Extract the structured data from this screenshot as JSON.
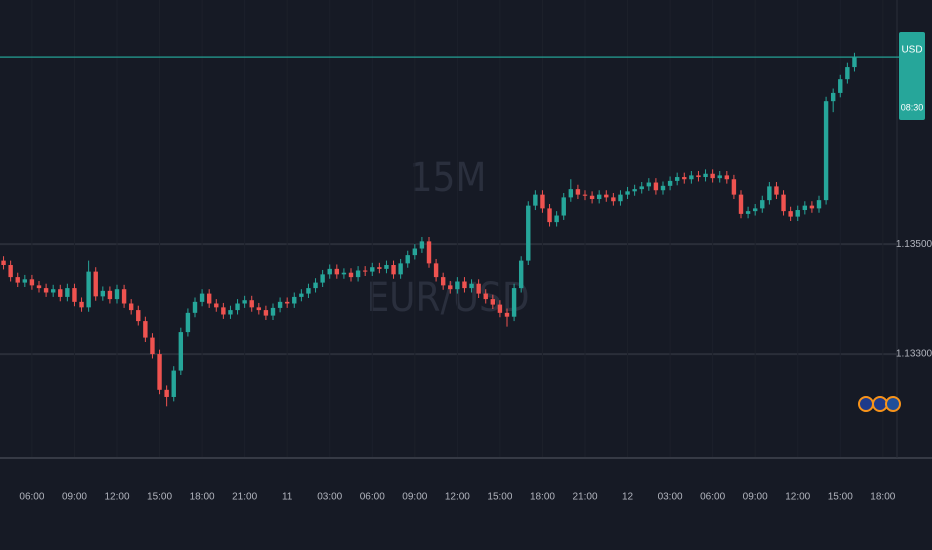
{
  "chart_data": {
    "type": "candlestick",
    "title": "EUR/USD",
    "subtitle": "15M",
    "currency": "USD",
    "countdown": "08:30",
    "up_color": "#26a69a",
    "down_color": "#ef5350",
    "xlim": [
      -0.5,
      126
    ],
    "ylim": [
      1.13111,
      1.13944
    ],
    "yticks": [
      {
        "value": 1.135,
        "label": "1.13500"
      },
      {
        "value": 1.133,
        "label": "1.13300"
      }
    ],
    "xticks": [
      {
        "value": 4,
        "label": "06:00"
      },
      {
        "value": 10,
        "label": "09:00"
      },
      {
        "value": 16,
        "label": "12:00"
      },
      {
        "value": 22,
        "label": "15:00"
      },
      {
        "value": 28,
        "label": "18:00"
      },
      {
        "value": 34,
        "label": "21:00"
      },
      {
        "value": 40,
        "label": "11"
      },
      {
        "value": 46,
        "label": "03:00"
      },
      {
        "value": 52,
        "label": "06:00"
      },
      {
        "value": 58,
        "label": "09:00"
      },
      {
        "value": 64,
        "label": "12:00"
      },
      {
        "value": 70,
        "label": "15:00"
      },
      {
        "value": 76,
        "label": "18:00"
      },
      {
        "value": 82,
        "label": "21:00"
      },
      {
        "value": 88,
        "label": "12"
      },
      {
        "value": 94,
        "label": "03:00"
      },
      {
        "value": 100,
        "label": "06:00"
      },
      {
        "value": 106,
        "label": "09:00"
      },
      {
        "value": 112,
        "label": "12:00"
      },
      {
        "value": 118,
        "label": "15:00"
      },
      {
        "value": 124,
        "label": "18:00"
      }
    ],
    "open": [
      1.1347,
      1.13462,
      1.1344,
      1.1343,
      1.13436,
      1.13425,
      1.1342,
      1.13412,
      1.13418,
      1.13404,
      1.1342,
      1.13395,
      1.13385,
      1.1345,
      1.13405,
      1.13415,
      1.134,
      1.13418,
      1.13392,
      1.1338,
      1.1336,
      1.1333,
      1.133,
      1.13235,
      1.13222,
      1.1327,
      1.1334,
      1.13375,
      1.13395,
      1.1341,
      1.13392,
      1.13385,
      1.13372,
      1.1338,
      1.13392,
      1.13398,
      1.13385,
      1.1338,
      1.1337,
      1.13384,
      1.13395,
      1.13392,
      1.13404,
      1.1341,
      1.1342,
      1.1343,
      1.13445,
      1.13455,
      1.13445,
      1.13448,
      1.1344,
      1.13452,
      1.1345,
      1.13458,
      1.13455,
      1.13462,
      1.13445,
      1.13465,
      1.1348,
      1.13492,
      1.13505,
      1.13465,
      1.1344,
      1.13425,
      1.13418,
      1.13432,
      1.1342,
      1.13428,
      1.1341,
      1.134,
      1.1339,
      1.13375,
      1.13368,
      1.1342,
      1.1347,
      1.1357,
      1.1359,
      1.13565,
      1.1354,
      1.13552,
      1.13585,
      1.136,
      1.1359,
      1.13588,
      1.13582,
      1.1359,
      1.13585,
      1.13578,
      1.1359,
      1.13596,
      1.136,
      1.13605,
      1.13612,
      1.13598,
      1.13606,
      1.13615,
      1.13622,
      1.13618,
      1.13625,
      1.13622,
      1.13628,
      1.1362,
      1.13625,
      1.13618,
      1.1359,
      1.13555,
      1.1356,
      1.13565,
      1.1358,
      1.13605,
      1.1359,
      1.1356,
      1.1355,
      1.13562,
      1.1357,
      1.13565,
      1.1358,
      1.1376,
      1.13775,
      1.138,
      1.13822
    ],
    "high": [
      1.13478,
      1.1347,
      1.13448,
      1.13444,
      1.13444,
      1.13433,
      1.13428,
      1.13426,
      1.13426,
      1.13428,
      1.13428,
      1.13403,
      1.1347,
      1.13458,
      1.13423,
      1.13423,
      1.13426,
      1.13426,
      1.134,
      1.13388,
      1.13368,
      1.13338,
      1.13308,
      1.13243,
      1.13278,
      1.13348,
      1.13383,
      1.13403,
      1.13418,
      1.13418,
      1.134,
      1.13393,
      1.13388,
      1.134,
      1.13406,
      1.13406,
      1.13393,
      1.13388,
      1.13392,
      1.13403,
      1.13403,
      1.13412,
      1.13418,
      1.13428,
      1.13438,
      1.13453,
      1.13463,
      1.13463,
      1.13456,
      1.13456,
      1.1346,
      1.1346,
      1.13466,
      1.13466,
      1.1347,
      1.1347,
      1.13473,
      1.13488,
      1.135,
      1.13513,
      1.13513,
      1.13473,
      1.13448,
      1.13433,
      1.1344,
      1.1344,
      1.13436,
      1.13436,
      1.13418,
      1.13408,
      1.13398,
      1.13383,
      1.13428,
      1.13478,
      1.13578,
      1.13598,
      1.13598,
      1.13573,
      1.1356,
      1.13593,
      1.13618,
      1.13608,
      1.13598,
      1.13596,
      1.13598,
      1.13598,
      1.13593,
      1.13598,
      1.13604,
      1.13608,
      1.13613,
      1.1362,
      1.1362,
      1.13614,
      1.13623,
      1.1363,
      1.1363,
      1.13633,
      1.13633,
      1.13636,
      1.13636,
      1.13633,
      1.13633,
      1.13626,
      1.13598,
      1.13568,
      1.13573,
      1.13588,
      1.13613,
      1.13613,
      1.13598,
      1.13568,
      1.1357,
      1.13578,
      1.13578,
      1.13588,
      1.13768,
      1.13783,
      1.13808,
      1.1383,
      1.13848
    ],
    "low": [
      1.13454,
      1.13432,
      1.13422,
      1.13422,
      1.13417,
      1.13412,
      1.13404,
      1.13404,
      1.13396,
      1.13396,
      1.13387,
      1.13377,
      1.13377,
      1.13397,
      1.13397,
      1.13392,
      1.13392,
      1.13384,
      1.13372,
      1.13352,
      1.13322,
      1.13292,
      1.13227,
      1.13205,
      1.13214,
      1.13262,
      1.13332,
      1.13367,
      1.13387,
      1.13384,
      1.13377,
      1.13364,
      1.13364,
      1.13372,
      1.13384,
      1.13377,
      1.13372,
      1.13362,
      1.13362,
      1.13376,
      1.13384,
      1.13384,
      1.13396,
      1.13402,
      1.13412,
      1.13422,
      1.13437,
      1.13437,
      1.13437,
      1.13432,
      1.13432,
      1.13442,
      1.13442,
      1.13447,
      1.13447,
      1.13437,
      1.13437,
      1.13457,
      1.13472,
      1.13484,
      1.13457,
      1.13432,
      1.13417,
      1.1341,
      1.1341,
      1.13412,
      1.13412,
      1.13402,
      1.13392,
      1.13382,
      1.13367,
      1.1335,
      1.1336,
      1.13412,
      1.13462,
      1.13562,
      1.13557,
      1.13532,
      1.13532,
      1.13544,
      1.13577,
      1.13582,
      1.1358,
      1.13574,
      1.13574,
      1.13577,
      1.1357,
      1.1357,
      1.13582,
      1.13588,
      1.13592,
      1.13597,
      1.1359,
      1.1359,
      1.13598,
      1.13607,
      1.1361,
      1.1361,
      1.13614,
      1.13614,
      1.13612,
      1.13612,
      1.1361,
      1.13582,
      1.13547,
      1.13547,
      1.13552,
      1.13557,
      1.13572,
      1.13582,
      1.13552,
      1.13542,
      1.13542,
      1.13554,
      1.13557,
      1.13557,
      1.13572,
      1.1374,
      1.13767,
      1.13792,
      1.13814
    ],
    "close": [
      1.13462,
      1.1344,
      1.1343,
      1.13436,
      1.13425,
      1.1342,
      1.13412,
      1.13418,
      1.13404,
      1.1342,
      1.13395,
      1.13385,
      1.1345,
      1.13405,
      1.13415,
      1.134,
      1.13418,
      1.13392,
      1.1338,
      1.1336,
      1.1333,
      1.133,
      1.13235,
      1.13222,
      1.1327,
      1.1334,
      1.13375,
      1.13395,
      1.1341,
      1.13392,
      1.13385,
      1.13372,
      1.1338,
      1.13392,
      1.13398,
      1.13385,
      1.1338,
      1.1337,
      1.13384,
      1.13395,
      1.13392,
      1.13404,
      1.1341,
      1.1342,
      1.1343,
      1.13445,
      1.13455,
      1.13445,
      1.13448,
      1.1344,
      1.13452,
      1.1345,
      1.13458,
      1.13455,
      1.13462,
      1.13445,
      1.13465,
      1.1348,
      1.13492,
      1.13505,
      1.13465,
      1.1344,
      1.13425,
      1.13418,
      1.13432,
      1.1342,
      1.13428,
      1.1341,
      1.134,
      1.1339,
      1.13375,
      1.13368,
      1.1342,
      1.1347,
      1.1357,
      1.1359,
      1.13565,
      1.1354,
      1.13552,
      1.13585,
      1.136,
      1.1359,
      1.13588,
      1.13582,
      1.1359,
      1.13585,
      1.13578,
      1.1359,
      1.13596,
      1.136,
      1.13605,
      1.13612,
      1.13598,
      1.13606,
      1.13615,
      1.13622,
      1.13618,
      1.13625,
      1.13622,
      1.13628,
      1.1362,
      1.13625,
      1.13618,
      1.1359,
      1.13555,
      1.1356,
      1.13565,
      1.1358,
      1.13605,
      1.1359,
      1.1356,
      1.1355,
      1.13562,
      1.1357,
      1.13565,
      1.1358,
      1.1376,
      1.13775,
      1.138,
      1.13822,
      1.1384
    ]
  }
}
